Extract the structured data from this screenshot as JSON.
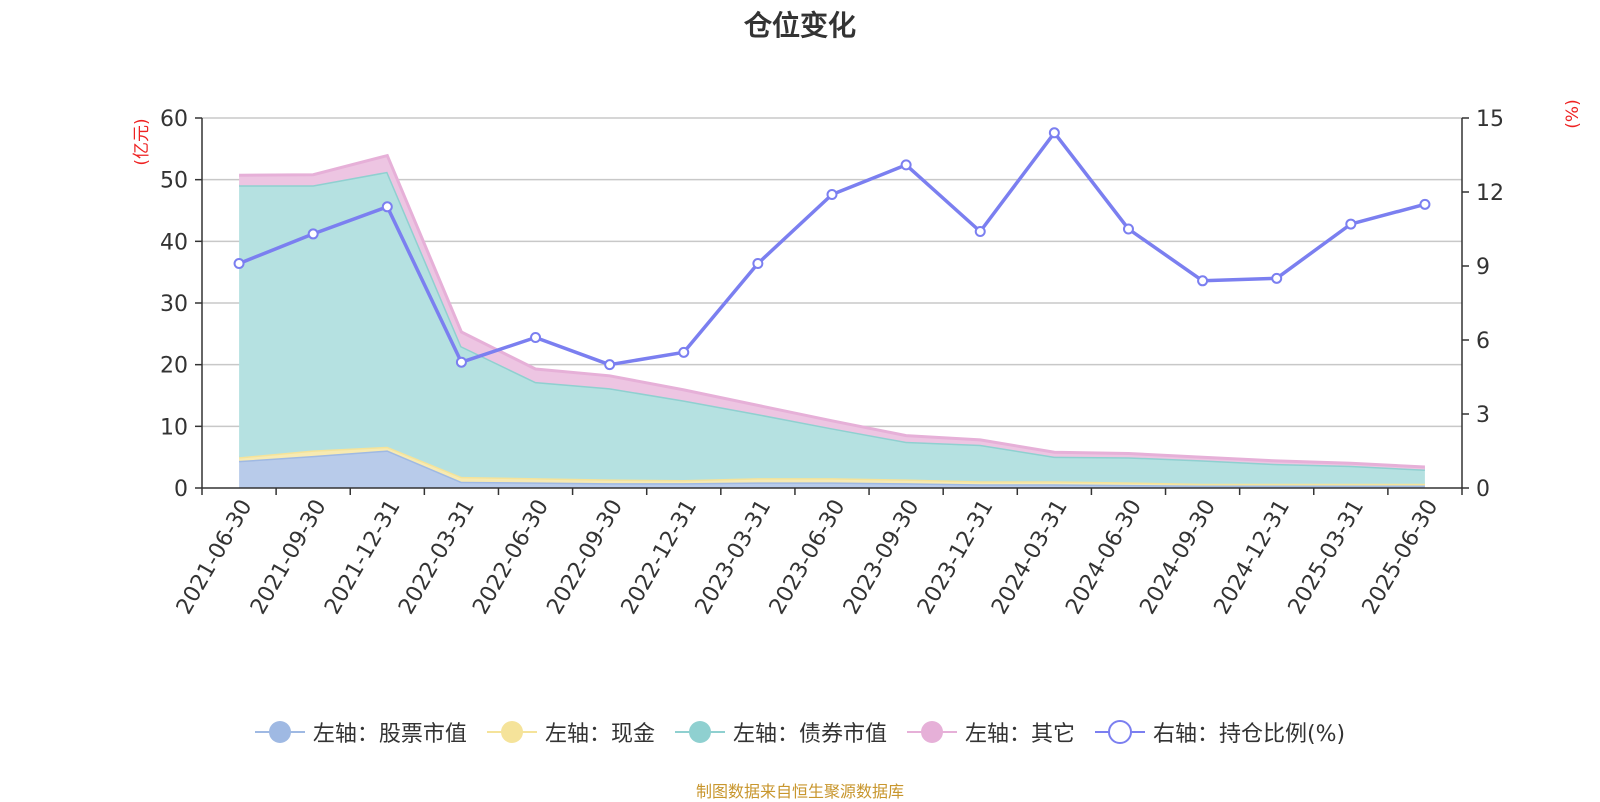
{
  "chart_data": {
    "type": "area",
    "title": "仓位变化",
    "left_axis_unit": "(亿元)",
    "right_axis_unit": "(%)",
    "categories": [
      "2021-06-30",
      "2021-09-30",
      "2021-12-31",
      "2022-03-31",
      "2022-06-30",
      "2022-09-30",
      "2022-12-31",
      "2023-03-31",
      "2023-06-30",
      "2023-09-30",
      "2023-12-31",
      "2024-03-31",
      "2024-06-30",
      "2024-09-30",
      "2024-12-31",
      "2025-03-31",
      "2025-06-30"
    ],
    "left_axis": {
      "min": 0,
      "max": 60,
      "ticks": [
        0,
        10,
        20,
        30,
        40,
        50,
        60
      ]
    },
    "right_axis": {
      "min": 0,
      "max": 15,
      "ticks": [
        0,
        3,
        6,
        9,
        12,
        15
      ]
    },
    "grid": true,
    "legend_position": "bottom",
    "stacked": true,
    "series": [
      {
        "name": "左轴：股票市值",
        "axis": "left",
        "kind": "area",
        "color": "#9fb9e3",
        "fill": "#b8cbea",
        "values": [
          4.4,
          5.2,
          6.1,
          1.0,
          0.9,
          0.8,
          0.8,
          0.9,
          0.9,
          0.8,
          0.6,
          0.6,
          0.5,
          0.4,
          0.4,
          0.4,
          0.4
        ]
      },
      {
        "name": "左轴：现金",
        "axis": "left",
        "kind": "area",
        "color": "#f5e39a",
        "fill": "#f7eab2",
        "values": [
          0.6,
          0.9,
          0.6,
          0.8,
          0.7,
          0.6,
          0.5,
          0.7,
          0.7,
          0.6,
          0.5,
          0.5,
          0.4,
          0.3,
          0.3,
          0.3,
          0.3
        ]
      },
      {
        "name": "左轴：债券市值",
        "axis": "left",
        "kind": "area",
        "color": "#8fd0d0",
        "fill": "#b5e1e1",
        "values": [
          44.1,
          43.0,
          44.6,
          21.2,
          15.6,
          14.8,
          12.9,
          10.4,
          8.1,
          6.1,
          5.9,
          4.0,
          4.1,
          3.8,
          3.2,
          2.9,
          2.3
        ]
      },
      {
        "name": "左轴：其它",
        "axis": "left",
        "kind": "area",
        "color": "#e6b0d8",
        "fill": "#edc5e2",
        "values": [
          1.6,
          1.7,
          2.6,
          2.3,
          2.1,
          2.0,
          1.7,
          1.4,
          1.2,
          1.0,
          0.8,
          0.7,
          0.6,
          0.5,
          0.5,
          0.4,
          0.4
        ]
      },
      {
        "name": "右轴：持仓比例(%)",
        "axis": "right",
        "kind": "line",
        "color": "#7b7ff0",
        "values": [
          9.1,
          10.3,
          11.4,
          5.1,
          6.1,
          5.0,
          5.5,
          9.1,
          11.9,
          13.1,
          10.4,
          14.4,
          10.5,
          8.4,
          8.5,
          10.7,
          11.5
        ]
      }
    ]
  },
  "source_note": "制图数据来自恒生聚源数据库"
}
